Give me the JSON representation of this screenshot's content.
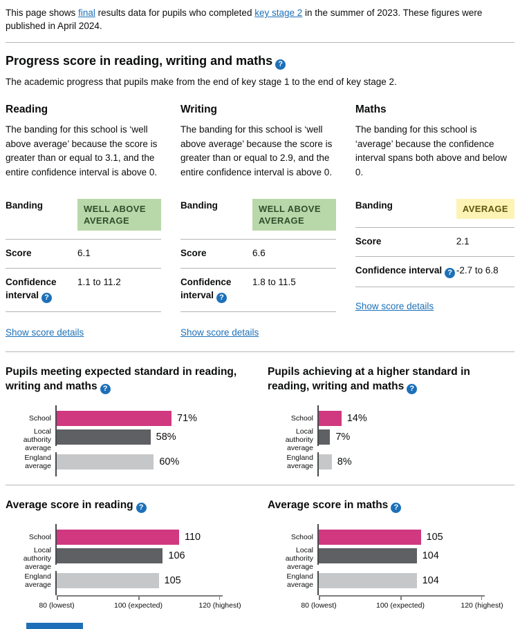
{
  "intro": {
    "pre": "This page shows ",
    "link_final": "final",
    "mid": " results data for pupils who completed ",
    "link_ks2": "key stage 2",
    "post": " in the summer of 2023. These figures were published in April 2024."
  },
  "progress_section": {
    "title": "Progress score in reading, writing and maths",
    "description": "The academic progress that pupils make from the end of key stage 1 to the end of key stage 2.",
    "columns": [
      {
        "subject": "Reading",
        "description": "The banding for this school is ‘well above average’ because the score is greater than or equal to 3.1, and the entire confidence interval is above 0.",
        "banding_label": "Banding",
        "banding": "WELL ABOVE AVERAGE",
        "score_label": "Score",
        "score": "6.1",
        "ci_label_line1": "Confidence",
        "ci_label_line2": "interval",
        "ci": "1.1 to 11.2",
        "details_link": "Show score details"
      },
      {
        "subject": "Writing",
        "description": "The banding for this school is ‘well above average’ because the score is greater than or equal to 2.9, and the entire confidence interval is above 0.",
        "banding_label": "Banding",
        "banding": "WELL ABOVE AVERAGE",
        "score_label": "Score",
        "score": "6.6",
        "ci_label_line1": "Confidence",
        "ci_label_line2": "interval",
        "ci": "1.8 to 11.5",
        "details_link": "Show score details"
      },
      {
        "subject": "Maths",
        "description": "The banding for this school is ‘average’ because the confidence interval spans both above and below 0.",
        "banding_label": "Banding",
        "banding": "AVERAGE",
        "score_label": "Score",
        "score": "2.1",
        "ci_label": "Confidence interval",
        "ci": "-2.7 to 6.8",
        "details_link": "Show score details"
      }
    ]
  },
  "chart_data": [
    {
      "type": "bar",
      "title": "Pupils meeting expected standard in reading, writing and maths",
      "categories": [
        "School",
        "Local authority average",
        "England average"
      ],
      "values": [
        71,
        58,
        60
      ],
      "value_labels": [
        "71%",
        "58%",
        "60%"
      ],
      "colors": [
        "#d0387f",
        "#5e6063",
        "#c5c7c9"
      ],
      "xlim": [
        0,
        124
      ],
      "axis": null,
      "legend": "none",
      "grid": false
    },
    {
      "type": "bar",
      "title": "Pupils achieving at a higher standard in reading, writing and maths",
      "categories": [
        "School",
        "Local authority average",
        "England average"
      ],
      "values": [
        14,
        7,
        8
      ],
      "value_labels": [
        "14%",
        "7%",
        "8%"
      ],
      "colors": [
        "#d0387f",
        "#5e6063",
        "#c5c7c9"
      ],
      "xlim": [
        0,
        124
      ],
      "axis": null,
      "legend": "none",
      "grid": false
    },
    {
      "type": "bar",
      "title": "Average score in reading",
      "categories": [
        "School",
        "Local authority average",
        "England average"
      ],
      "values": [
        110,
        106,
        105
      ],
      "value_labels": [
        "110",
        "106",
        "105"
      ],
      "colors": [
        "#d0387f",
        "#5e6063",
        "#c5c7c9"
      ],
      "xlim": [
        80,
        120
      ],
      "axis": {
        "ticks": [
          80,
          100,
          120
        ],
        "tick_labels": [
          "80 (lowest)",
          "100 (expected)",
          "120 (highest)"
        ]
      },
      "legend": "none",
      "grid": false
    },
    {
      "type": "bar",
      "title": "Average score in maths",
      "categories": [
        "School",
        "Local authority average",
        "England average"
      ],
      "values": [
        105,
        104,
        104
      ],
      "value_labels": [
        "105",
        "104",
        "104"
      ],
      "colors": [
        "#d0387f",
        "#5e6063",
        "#c5c7c9"
      ],
      "xlim": [
        80,
        120
      ],
      "axis": {
        "ticks": [
          80,
          100,
          120
        ],
        "tick_labels": [
          "80 (lowest)",
          "100 (expected)",
          "120 (highest)"
        ]
      },
      "legend": "none",
      "grid": false
    }
  ]
}
